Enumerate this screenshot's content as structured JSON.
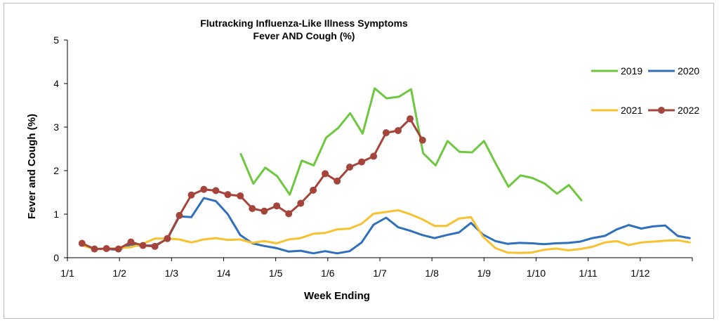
{
  "chart_data": {
    "type": "line",
    "title_lines": [
      "Flutracking Influenza-Like Illness Symptoms",
      "Fever AND Cough (%)"
    ],
    "xlabel": "Week Ending",
    "ylabel": "Fever and Cough (%)",
    "ylim": [
      0,
      5
    ],
    "yticks": [
      0,
      1,
      2,
      3,
      4,
      5
    ],
    "xlim": [
      1,
      13
    ],
    "xticks": [
      {
        "value": 1,
        "label": "1/1"
      },
      {
        "value": 2,
        "label": "1/2"
      },
      {
        "value": 3,
        "label": "1/3"
      },
      {
        "value": 4,
        "label": "1/4"
      },
      {
        "value": 5,
        "label": "1/5"
      },
      {
        "value": 6,
        "label": "1/6"
      },
      {
        "value": 7,
        "label": "1/7"
      },
      {
        "value": 8,
        "label": "1/8"
      },
      {
        "value": 9,
        "label": "1/9"
      },
      {
        "value": 10,
        "label": "1/10"
      },
      {
        "value": 11,
        "label": "1/11"
      },
      {
        "value": 12,
        "label": "1/12"
      }
    ],
    "grid": false,
    "legend": {
      "placement": "right"
    },
    "series": [
      {
        "name": "2019",
        "color": "#6dc83f",
        "marker": false,
        "x": [
          4.33,
          4.57,
          4.8,
          5.03,
          5.27,
          5.5,
          5.73,
          5.97,
          6.2,
          6.43,
          6.67,
          6.9,
          7.13,
          7.37,
          7.6,
          7.83,
          8.07,
          8.3,
          8.53,
          8.77,
          9.0,
          9.23,
          9.47,
          9.7,
          9.93,
          10.17,
          10.4,
          10.63,
          10.87
        ],
        "y": [
          2.38,
          1.7,
          2.07,
          1.87,
          1.45,
          2.23,
          2.12,
          2.76,
          2.98,
          3.32,
          2.85,
          3.89,
          3.66,
          3.7,
          3.87,
          2.4,
          2.12,
          2.68,
          2.43,
          2.42,
          2.68,
          2.15,
          1.63,
          1.89,
          1.83,
          1.7,
          1.47,
          1.67,
          1.32
        ]
      },
      {
        "name": "2020",
        "color": "#2f6fbc",
        "marker": false,
        "x": [
          1.28,
          1.52,
          1.75,
          1.98,
          2.22,
          2.45,
          2.68,
          2.92,
          3.15,
          3.38,
          3.62,
          3.85,
          4.08,
          4.32,
          4.55,
          4.78,
          5.02,
          5.25,
          5.48,
          5.72,
          5.95,
          6.18,
          6.42,
          6.65,
          6.88,
          7.12,
          7.35,
          7.58,
          7.82,
          8.05,
          8.28,
          8.52,
          8.75,
          8.98,
          9.22,
          9.45,
          9.68,
          9.92,
          10.15,
          10.38,
          10.62,
          10.85,
          11.08,
          11.32,
          11.55,
          11.78,
          12.02,
          12.25,
          12.48,
          12.72,
          12.95
        ],
        "y": [
          0.32,
          0.2,
          0.2,
          0.18,
          0.3,
          0.28,
          0.28,
          0.43,
          0.95,
          0.93,
          1.37,
          1.3,
          1.0,
          0.52,
          0.33,
          0.27,
          0.22,
          0.14,
          0.16,
          0.1,
          0.15,
          0.1,
          0.15,
          0.35,
          0.76,
          0.92,
          0.7,
          0.62,
          0.52,
          0.45,
          0.52,
          0.58,
          0.8,
          0.53,
          0.38,
          0.32,
          0.34,
          0.33,
          0.31,
          0.33,
          0.34,
          0.37,
          0.45,
          0.5,
          0.65,
          0.75,
          0.67,
          0.72,
          0.74,
          0.5,
          0.45
        ]
      },
      {
        "name": "2021",
        "color": "#f7c12f",
        "marker": false,
        "x": [
          1.28,
          1.52,
          1.75,
          1.98,
          2.22,
          2.45,
          2.68,
          2.92,
          3.15,
          3.38,
          3.62,
          3.85,
          4.08,
          4.32,
          4.55,
          4.78,
          5.02,
          5.25,
          5.48,
          5.72,
          5.95,
          6.18,
          6.42,
          6.65,
          6.88,
          7.12,
          7.35,
          7.58,
          7.82,
          8.05,
          8.28,
          8.52,
          8.75,
          8.98,
          9.22,
          9.45,
          9.68,
          9.92,
          10.15,
          10.38,
          10.62,
          10.85,
          11.08,
          11.32,
          11.55,
          11.78,
          12.02,
          12.25,
          12.48,
          12.72,
          12.95
        ],
        "y": [
          0.28,
          0.2,
          0.2,
          0.22,
          0.24,
          0.32,
          0.44,
          0.44,
          0.42,
          0.35,
          0.42,
          0.45,
          0.41,
          0.42,
          0.34,
          0.38,
          0.33,
          0.42,
          0.45,
          0.55,
          0.57,
          0.65,
          0.67,
          0.78,
          1.01,
          1.05,
          1.09,
          1.0,
          0.88,
          0.73,
          0.73,
          0.9,
          0.93,
          0.48,
          0.22,
          0.12,
          0.11,
          0.12,
          0.18,
          0.21,
          0.17,
          0.2,
          0.25,
          0.35,
          0.38,
          0.29,
          0.35,
          0.37,
          0.39,
          0.4,
          0.35
        ]
      },
      {
        "name": "2022",
        "color": "#a5443b",
        "marker": true,
        "x": [
          1.28,
          1.52,
          1.75,
          1.98,
          2.22,
          2.45,
          2.68,
          2.92,
          3.15,
          3.38,
          3.62,
          3.85,
          4.08,
          4.32,
          4.55,
          4.78,
          5.02,
          5.25,
          5.48,
          5.72,
          5.95,
          6.18,
          6.42,
          6.65,
          6.88,
          7.12,
          7.35,
          7.58,
          7.82
        ],
        "y": [
          0.33,
          0.2,
          0.21,
          0.2,
          0.36,
          0.28,
          0.26,
          0.44,
          0.97,
          1.44,
          1.57,
          1.54,
          1.45,
          1.42,
          1.13,
          1.07,
          1.19,
          1.01,
          1.25,
          1.55,
          1.93,
          1.76,
          2.08,
          2.2,
          2.33,
          2.87,
          2.92,
          3.19,
          2.7
        ]
      }
    ]
  }
}
